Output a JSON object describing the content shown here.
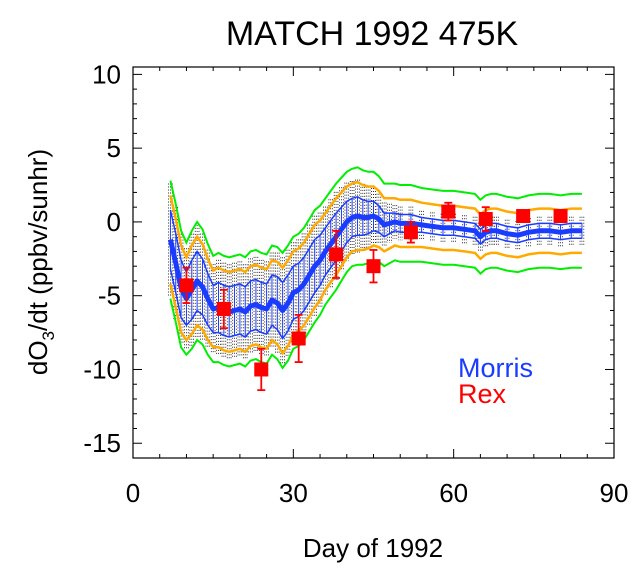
{
  "chart_data": {
    "type": "line",
    "title": "MATCH 1992  475K",
    "xlabel": "Day of 1992",
    "ylabel_prefix": "dO",
    "ylabel_sub": "3",
    "ylabel_suffix": "/dt (ppbv/sunhr)",
    "xlim": [
      0,
      90
    ],
    "ylim": [
      -16,
      10.5
    ],
    "xticks": [
      0,
      30,
      60,
      90
    ],
    "yticks": [
      10,
      5,
      0,
      -5,
      -10,
      -15
    ],
    "grid": false,
    "legend": {
      "placement": "lower-right"
    },
    "series": [
      {
        "name": "Morris",
        "kind": "line",
        "color": "#1a3cff",
        "x": [
          7,
          8,
          9,
          10,
          11,
          12,
          13,
          14,
          15,
          16,
          17,
          18,
          19,
          20,
          21,
          22,
          23,
          24,
          25,
          26,
          27,
          28,
          29,
          30,
          31,
          32,
          33,
          34,
          35,
          36,
          37,
          38,
          39,
          40,
          41,
          42,
          43,
          44,
          45,
          46,
          47,
          48,
          49,
          50,
          52,
          54,
          56,
          58,
          60,
          62,
          64,
          65,
          66,
          67,
          68,
          70,
          72,
          74,
          76,
          78,
          80,
          82,
          84
        ],
        "y": [
          -1.2,
          -2.8,
          -4.5,
          -5.2,
          -4.6,
          -4.0,
          -4.4,
          -5.2,
          -5.9,
          -5.8,
          -6.0,
          -6.1,
          -6.0,
          -5.9,
          -6.1,
          -5.7,
          -5.6,
          -5.8,
          -5.9,
          -5.3,
          -5.5,
          -6.0,
          -5.5,
          -4.8,
          -4.6,
          -4.2,
          -3.6,
          -3.0,
          -2.6,
          -2.0,
          -1.5,
          -1.0,
          -0.5,
          0.0,
          0.3,
          0.4,
          0.3,
          0.3,
          0.4,
          0.2,
          -0.2,
          -0.1,
          0.0,
          -0.1,
          -0.1,
          -0.2,
          -0.3,
          -0.4,
          -0.4,
          -0.5,
          -0.6,
          -1.0,
          -0.7,
          -0.6,
          -0.6,
          -0.8,
          -0.9,
          -0.7,
          -0.6,
          -0.6,
          -0.7,
          -0.6,
          -0.6
        ],
        "upper": [
          0.8,
          -0.8,
          -2.6,
          -3.4,
          -2.6,
          -2.0,
          -2.5,
          -3.5,
          -4.3,
          -4.1,
          -4.3,
          -4.4,
          -4.3,
          -4.2,
          -4.4,
          -4.0,
          -3.9,
          -4.1,
          -4.2,
          -3.6,
          -3.7,
          -4.1,
          -3.6,
          -3.0,
          -2.8,
          -2.4,
          -1.8,
          -1.2,
          -0.9,
          -0.4,
          0.1,
          0.6,
          1.0,
          1.4,
          1.6,
          1.7,
          1.5,
          1.4,
          1.4,
          1.1,
          0.6,
          0.6,
          0.6,
          0.5,
          0.5,
          0.3,
          0.2,
          0.1,
          0.1,
          0.0,
          -0.1,
          -0.5,
          -0.2,
          -0.1,
          -0.1,
          -0.3,
          -0.4,
          -0.2,
          -0.1,
          -0.1,
          -0.2,
          -0.1,
          -0.1
        ],
        "lower": [
          -3.2,
          -4.8,
          -6.5,
          -7.0,
          -6.6,
          -6.0,
          -6.3,
          -7.0,
          -7.5,
          -7.5,
          -7.7,
          -7.8,
          -7.7,
          -7.6,
          -7.8,
          -7.4,
          -7.3,
          -7.5,
          -7.6,
          -7.0,
          -7.3,
          -7.9,
          -7.4,
          -6.6,
          -6.4,
          -6.0,
          -5.4,
          -4.8,
          -4.3,
          -3.6,
          -3.1,
          -2.6,
          -2.0,
          -1.4,
          -1.0,
          -0.9,
          -0.9,
          -0.8,
          -0.6,
          -0.7,
          -1.0,
          -0.8,
          -0.6,
          -0.7,
          -0.7,
          -0.7,
          -0.8,
          -0.9,
          -0.9,
          -1.0,
          -1.1,
          -1.5,
          -1.2,
          -1.1,
          -1.1,
          -1.3,
          -1.4,
          -1.2,
          -1.1,
          -1.1,
          -1.2,
          -1.1,
          -1.1
        ]
      },
      {
        "name": "Rex",
        "kind": "points",
        "color": "#ff0000",
        "x": [
          10,
          17,
          24,
          31,
          38,
          45,
          52,
          59,
          66,
          73,
          80
        ],
        "y": [
          -4.3,
          -5.9,
          -10.0,
          -7.9,
          -2.2,
          -3.0,
          -0.7,
          0.7,
          0.2,
          0.4,
          0.4
        ],
        "err": [
          1.2,
          1.3,
          1.4,
          1.6,
          1.6,
          1.1,
          0.7,
          0.6,
          0.8,
          0.3,
          0.4
        ]
      }
    ],
    "envelopes": {
      "orange_color": "#ffaa00",
      "green_color": "#00ee00",
      "orange_offset": 1.0,
      "green_offset": 2.0,
      "scatter_color": "#000000"
    }
  }
}
